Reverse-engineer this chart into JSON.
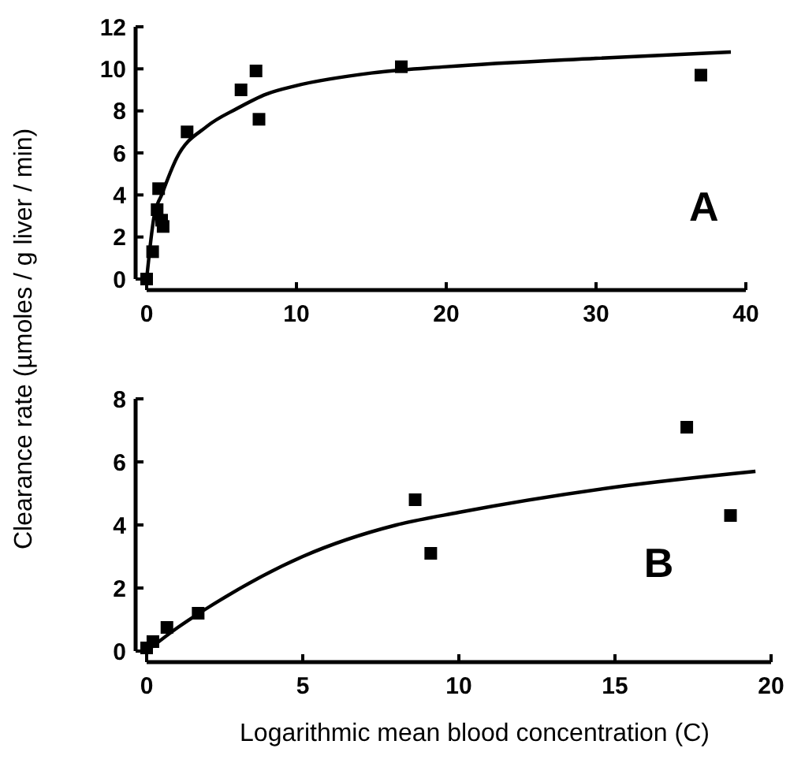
{
  "chart_data": [
    {
      "type": "scatter",
      "ylabel": "Clearance rate (µmoles / g liver / min)",
      "annotations": [
        "A"
      ],
      "xlim": [
        0,
        40
      ],
      "xticks": [
        0,
        10,
        20,
        30,
        40
      ],
      "ylim": [
        0,
        12
      ],
      "yticks": [
        0,
        2,
        4,
        6,
        8,
        10,
        12
      ],
      "series": [
        {
          "marker": "square",
          "color": "#000000",
          "x": [
            0,
            0.4,
            0.8,
            0.7,
            1.0,
            1.1,
            2.7,
            6.3,
            7.3,
            7.5,
            17.0,
            37.0
          ],
          "values": [
            0,
            1.3,
            4.3,
            3.3,
            2.8,
            2.5,
            7.0,
            9.0,
            9.9,
            7.6,
            10.1,
            9.7
          ]
        },
        {
          "type": "line",
          "marker": "none",
          "color": "#000000",
          "x": [
            0,
            0.5,
            1,
            2,
            4,
            6,
            8,
            10,
            15,
            20,
            30,
            39
          ],
          "values": [
            0,
            3.0,
            4.0,
            5.75,
            7.25,
            8.1,
            8.8,
            9.2,
            9.8,
            10.1,
            10.5,
            10.8
          ]
        }
      ]
    },
    {
      "type": "scatter",
      "xlabel": "Logarithmic mean blood concentration (C)",
      "annotations": [
        "B"
      ],
      "xlim": [
        0,
        20
      ],
      "xticks": [
        0,
        5,
        10,
        15,
        20
      ],
      "ylim": [
        0,
        8
      ],
      "yticks": [
        0,
        2,
        4,
        6,
        8
      ],
      "series": [
        {
          "marker": "square",
          "color": "#000000",
          "x": [
            0,
            0.2,
            0.65,
            1.65,
            8.6,
            9.1,
            17.3,
            18.7
          ],
          "values": [
            0.1,
            0.3,
            0.75,
            1.2,
            4.8,
            3.1,
            7.1,
            4.3
          ]
        },
        {
          "type": "line",
          "marker": "none",
          "color": "#000000",
          "x": [
            0,
            1,
            2,
            5,
            8,
            10,
            15,
            19.5
          ],
          "values": [
            0,
            0.75,
            1.4,
            3.0,
            4.0,
            4.4,
            5.2,
            5.7
          ]
        }
      ]
    }
  ]
}
